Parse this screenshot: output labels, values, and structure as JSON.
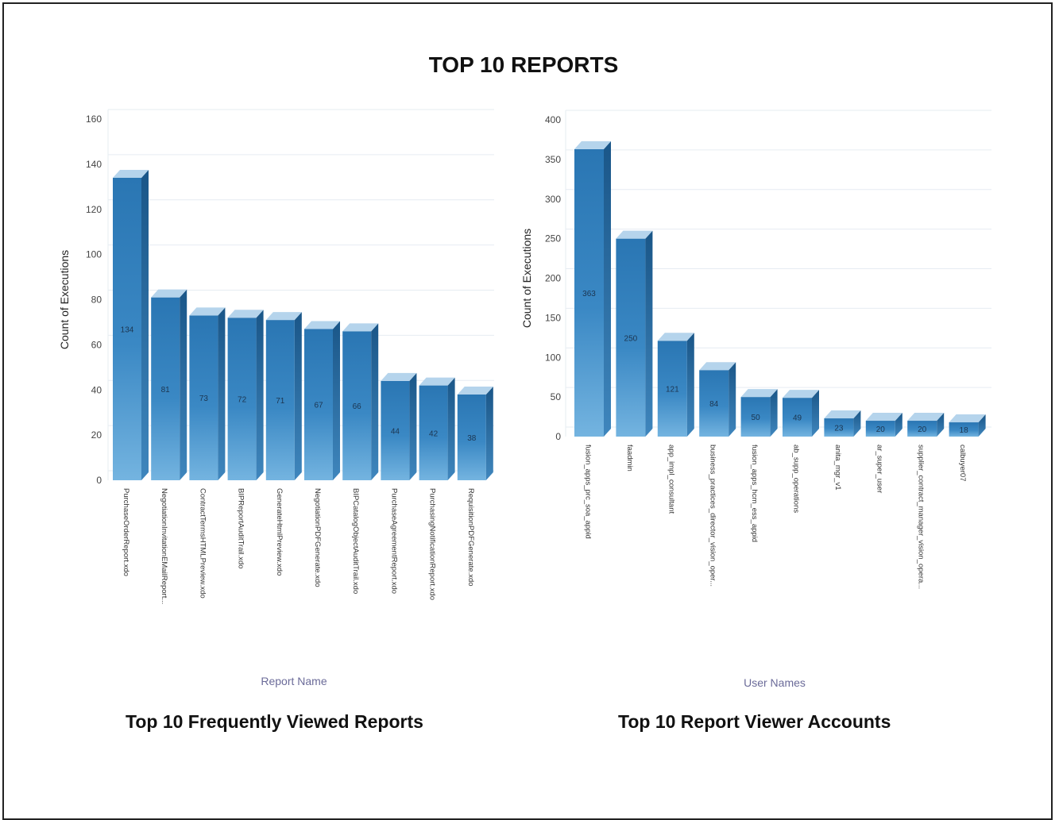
{
  "page": {
    "title": "TOP 10 REPORTS"
  },
  "colors": {
    "bar_front": "#2f7fbd",
    "bar_front_light": "#6aaedc",
    "bar_side": "#1d5f93",
    "bar_top": "#b5d4ec",
    "grid": "#e6ecf2",
    "axis_text": "#444444",
    "xlabel_text": "#6b6b99"
  },
  "chart_data": [
    {
      "type": "bar",
      "caption": "Top 10 Frequently Viewed Reports",
      "xlabel": "Report Name",
      "ylabel": "Count of Executions",
      "ylim": [
        0,
        160
      ],
      "yticks": [
        0,
        20,
        40,
        60,
        80,
        100,
        120,
        140,
        160
      ],
      "categories": [
        "PurchaseOrderReport.xdo",
        "NegotiationInvitationEMailReport...",
        "ContractTermsHTMLPreview.xdo",
        "BIPReportAuditTrail.xdo",
        "GenerateHtmlPreview.xdo",
        "NegotiationPDFGenerate.xdo",
        "BIPCatalogObjectAuditTrail.xdo",
        "PurchaseAgreementReport.xdo",
        "PurchasingNotificationReport.xdo",
        "RequisitionPDFGenerate.xdo"
      ],
      "values": [
        134,
        81,
        73,
        72,
        71,
        67,
        66,
        44,
        42,
        38
      ],
      "grid": true,
      "legend": "none"
    },
    {
      "type": "bar",
      "caption": "Top 10 Report Viewer Accounts",
      "xlabel": "User Names",
      "ylabel": "Count of Executions",
      "ylim": [
        0,
        400
      ],
      "yticks": [
        0,
        50,
        100,
        150,
        200,
        250,
        300,
        350,
        400
      ],
      "categories": [
        "fusion_apps_prc_soa_appid",
        "faadmin",
        "app_impl_consultant",
        "business_practices_director_vision_oper...",
        "fusion_apps_hcm_ess_appid",
        "ab_supp_operations",
        "anita_mgr_v1",
        "ar_super_user",
        "supplier_contract_manager_vision_opera...",
        "calbuyer07"
      ],
      "values": [
        363,
        250,
        121,
        84,
        50,
        49,
        23,
        20,
        20,
        18
      ],
      "grid": true,
      "legend": "none"
    }
  ]
}
